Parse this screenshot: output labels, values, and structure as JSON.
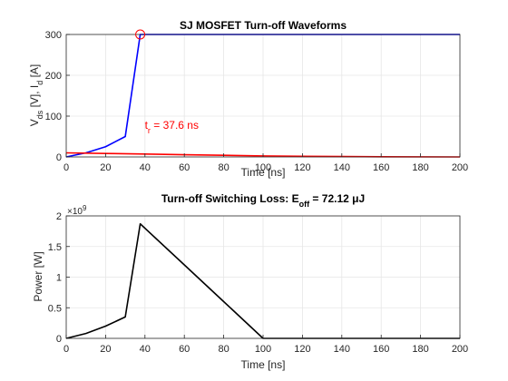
{
  "chart_data": [
    {
      "type": "line",
      "title": "SJ MOSFET Turn-off Waveforms",
      "xlabel": "Time [ns]",
      "ylabel_parts": [
        "V",
        "ds",
        " [V], I",
        "d",
        " [A]"
      ],
      "xlim": [
        0,
        200
      ],
      "ylim": [
        0,
        300
      ],
      "xticks": [
        "0",
        "20",
        "40",
        "60",
        "80",
        "100",
        "120",
        "140",
        "160",
        "180",
        "200"
      ],
      "yticks": [
        "0",
        "100",
        "200",
        "300"
      ],
      "grid": true,
      "series": [
        {
          "color": "#0000ff",
          "x": [
            0,
            10,
            20,
            30,
            37.6,
            40,
            60,
            100,
            140,
            200
          ],
          "y": [
            0,
            10,
            25,
            50,
            300,
            300,
            300,
            300,
            300,
            300
          ]
        },
        {
          "color": "#ff0000",
          "x": [
            0,
            20,
            40,
            60,
            80,
            100,
            120,
            160,
            200
          ],
          "y": [
            10,
            8.5,
            7,
            5.5,
            4,
            2.5,
            1.5,
            0.5,
            0
          ]
        }
      ],
      "annotations": [
        {
          "label_main": "t",
          "label_sub": "r",
          "label_rest": " = 37.6 ns",
          "x": 37.6,
          "y": 300,
          "marker": "circle",
          "color": "#ff0000"
        }
      ]
    },
    {
      "type": "line",
      "title_parts": [
        "Turn-off Switching Loss: E",
        "off",
        " = 72.12 μJ"
      ],
      "xlabel": "Time [ns]",
      "ylabel": "Power [W]",
      "exponent_label": "×10",
      "exponent_power": "9",
      "xlim": [
        0,
        200
      ],
      "ylim": [
        0,
        2
      ],
      "xticks": [
        "0",
        "20",
        "40",
        "60",
        "80",
        "100",
        "120",
        "140",
        "160",
        "180",
        "200"
      ],
      "yticks": [
        "0",
        "0.5",
        "1",
        "1.5",
        "2"
      ],
      "grid": true,
      "series": [
        {
          "color": "#000000",
          "x": [
            0,
            10,
            20,
            30,
            37.6,
            60,
            80,
            100,
            200
          ],
          "y": [
            0,
            0.08,
            0.2,
            0.35,
            1.87,
            1.2,
            0.6,
            0,
            0
          ]
        }
      ]
    }
  ]
}
